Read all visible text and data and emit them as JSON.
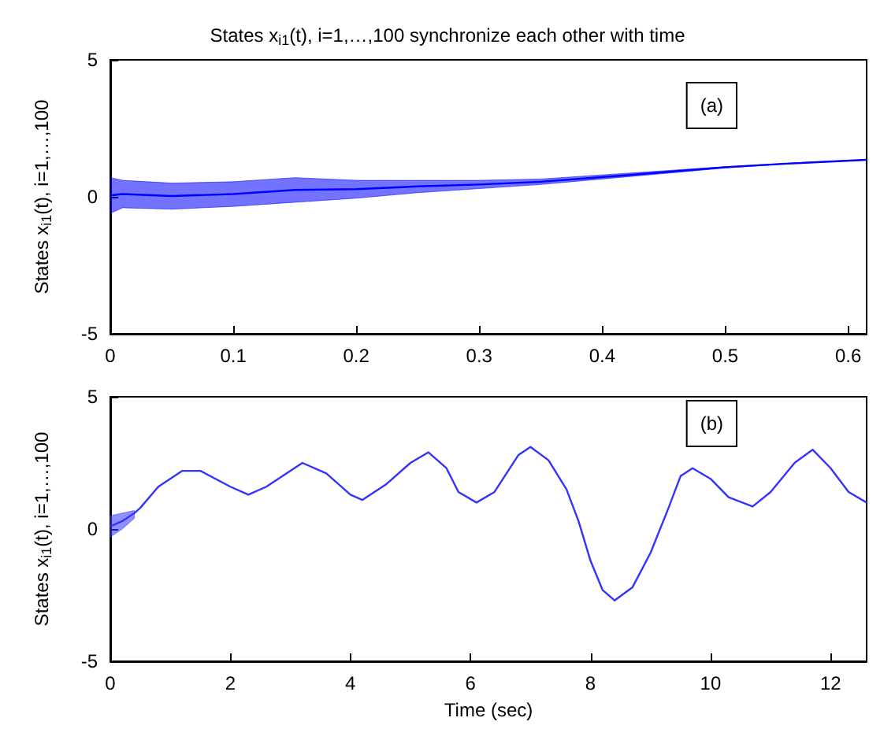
{
  "chart_data": [
    {
      "type": "line",
      "title": "States x$_{i1}$(t), i=1,…,100 synchronize each other with time",
      "ylabel": "States x$_{i1}$(t), i=1,…,100",
      "annotations": [
        "(a)"
      ],
      "x": [
        0,
        0.01,
        0.05,
        0.1,
        0.15,
        0.2,
        0.25,
        0.3,
        0.35,
        0.4,
        0.45,
        0.5,
        0.55,
        0.615
      ],
      "series": [
        {
          "color": "#0000ff",
          "values": [
            0.05,
            0.1,
            0.03,
            0.1,
            0.25,
            0.28,
            0.38,
            0.45,
            0.55,
            0.72,
            0.9,
            1.08,
            1.21,
            1.35
          ],
          "lower": [
            -0.6,
            -0.4,
            -0.45,
            -0.35,
            -0.2,
            -0.05,
            0.15,
            0.3,
            0.45,
            0.65,
            0.85,
            1.05,
            1.2,
            1.34
          ],
          "upper": [
            0.7,
            0.6,
            0.5,
            0.55,
            0.7,
            0.6,
            0.6,
            0.6,
            0.65,
            0.8,
            0.95,
            1.1,
            1.22,
            1.36
          ]
        }
      ],
      "xlim": [
        0,
        0.615
      ],
      "xticks": [
        0,
        0.1,
        0.2,
        0.3,
        0.4,
        0.5,
        0.6
      ],
      "ylim": [
        -5,
        5
      ],
      "yticks": [
        -5,
        0,
        5
      ],
      "grid": false,
      "marker": "none",
      "line_style": "solid"
    },
    {
      "type": "line",
      "xlabel": "Time (sec)",
      "ylabel": "States x$_{i1}$(t), i=1,…,100",
      "annotations": [
        "(b)"
      ],
      "x": [
        0,
        0.2,
        0.4,
        0.5,
        0.8,
        1.2,
        1.5,
        2,
        2.3,
        2.6,
        3.2,
        3.6,
        4,
        4.2,
        4.6,
        5,
        5.3,
        5.6,
        5.8,
        6.1,
        6.4,
        6.8,
        7,
        7.3,
        7.6,
        7.8,
        8,
        8.2,
        8.4,
        8.7,
        9,
        9.3,
        9.5,
        9.7,
        10,
        10.3,
        10.7,
        11,
        11.4,
        11.7,
        12,
        12.3,
        12.6
      ],
      "series": [
        {
          "color": "#3333ff",
          "values": [
            0.1,
            0.3,
            0.6,
            0.8,
            1.6,
            2.2,
            2.2,
            1.6,
            1.3,
            1.6,
            2.5,
            2.1,
            1.3,
            1.1,
            1.7,
            2.5,
            2.9,
            2.3,
            1.4,
            1.0,
            1.4,
            2.8,
            3.1,
            2.6,
            1.5,
            0.3,
            -1.2,
            -2.3,
            -2.7,
            -2.2,
            -0.9,
            0.8,
            2.0,
            2.3,
            1.9,
            1.2,
            0.85,
            1.4,
            2.5,
            3.0,
            2.3,
            1.4,
            1.0
          ],
          "lower": [
            -0.3,
            0,
            0.4,
            null,
            null,
            null,
            null,
            null,
            null,
            null,
            null,
            null,
            null,
            null,
            null,
            null,
            null,
            null,
            null,
            null,
            null,
            null,
            null,
            null,
            null,
            null,
            null,
            null,
            null,
            null,
            null,
            null,
            null,
            null,
            null,
            null,
            null,
            null,
            null,
            null,
            null,
            null,
            null
          ],
          "upper": [
            0.5,
            0.6,
            0.7,
            null,
            null,
            null,
            null,
            null,
            null,
            null,
            null,
            null,
            null,
            null,
            null,
            null,
            null,
            null,
            null,
            null,
            null,
            null,
            null,
            null,
            null,
            null,
            null,
            null,
            null,
            null,
            null,
            null,
            null,
            null,
            null,
            null,
            null,
            null,
            null,
            null,
            null,
            null,
            null
          ]
        }
      ],
      "xlim": [
        0,
        12.6
      ],
      "xticks": [
        0,
        2,
        4,
        6,
        8,
        10,
        12
      ],
      "ylim": [
        -5,
        5
      ],
      "yticks": [
        -5,
        0,
        5
      ],
      "grid": false,
      "marker": "none",
      "line_style": "solid"
    }
  ]
}
